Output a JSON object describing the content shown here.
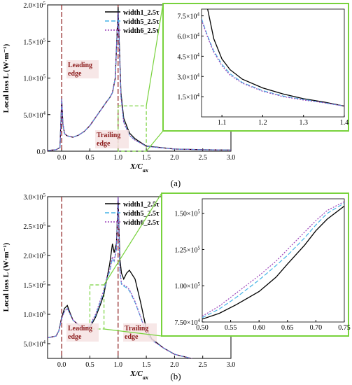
{
  "colors": {
    "width1": "#000000",
    "width5": "#46b4e6",
    "width6": "#9a3fb8",
    "zoom": "#78d23c",
    "marker": "#8b1a1a",
    "label_bg": "#f6e3e3"
  },
  "chart_data": [
    {
      "id": "a",
      "type": "line",
      "subfigure_label": "(a)",
      "xlabel": "X/C",
      "xlabel_sub": "ax",
      "ylabel": "Local loss L (W·m⁻¹)",
      "xlim": [
        -0.25,
        3.0
      ],
      "ylim": [
        0,
        200000
      ],
      "x_ticks": [
        "0.0",
        "0.5",
        "1.0",
        "1.5",
        "2.0",
        "2.5",
        "3.0"
      ],
      "y_ticks": [
        {
          "mantissa": "0.0",
          "exp": ""
        },
        {
          "mantissa": "5.0×10",
          "exp": "4"
        },
        {
          "mantissa": "1.0×10",
          "exp": "5"
        },
        {
          "mantissa": "1.5×10",
          "exp": "5"
        },
        {
          "mantissa": "2.0×10",
          "exp": "5"
        }
      ],
      "legend": [
        "width1_2.5τ",
        "width5_2.5τ",
        "width6_2.5τ"
      ],
      "annotations": {
        "leading": [
          "Leading",
          "edge"
        ],
        "trailing": [
          "Trailing",
          "edge"
        ]
      },
      "series": [
        {
          "name": "width1_2.5τ",
          "x": [
            -0.25,
            -0.1,
            -0.03,
            0.0,
            0.02,
            0.05,
            0.1,
            0.2,
            0.3,
            0.4,
            0.5,
            0.6,
            0.7,
            0.8,
            0.85,
            0.9,
            0.95,
            0.97,
            1.0,
            1.02,
            1.05,
            1.1,
            1.2,
            1.3,
            1.4,
            1.5,
            2.0,
            2.5,
            3.0
          ],
          "y": [
            1000,
            2000,
            5000,
            72000,
            38000,
            24000,
            21000,
            19000,
            22000,
            27000,
            35000,
            46000,
            57000,
            68000,
            73000,
            80000,
            100000,
            140000,
            197000,
            150000,
            80000,
            45000,
            25000,
            17000,
            12000,
            7000,
            3000,
            2000,
            1500
          ]
        },
        {
          "name": "width5_2.5τ",
          "x": [
            -0.25,
            -0.1,
            -0.03,
            0.0,
            0.02,
            0.05,
            0.1,
            0.2,
            0.3,
            0.4,
            0.5,
            0.6,
            0.7,
            0.8,
            0.85,
            0.9,
            0.95,
            0.97,
            1.0,
            1.02,
            1.05,
            1.1,
            1.2,
            1.3,
            1.4,
            1.5,
            2.0,
            2.5,
            3.0
          ],
          "y": [
            1000,
            2000,
            5000,
            72000,
            38000,
            24000,
            21000,
            19000,
            22000,
            27000,
            35000,
            46000,
            57000,
            68000,
            73000,
            80000,
            100000,
            138000,
            192000,
            145000,
            75000,
            40000,
            22000,
            15000,
            11000,
            6500,
            3000,
            2000,
            1500
          ]
        },
        {
          "name": "width6_2.5τ",
          "x": [
            -0.25,
            -0.1,
            -0.03,
            0.0,
            0.02,
            0.05,
            0.1,
            0.2,
            0.3,
            0.4,
            0.5,
            0.6,
            0.7,
            0.8,
            0.85,
            0.9,
            0.95,
            0.97,
            1.0,
            1.02,
            1.05,
            1.1,
            1.2,
            1.3,
            1.4,
            1.5,
            2.0,
            2.5,
            3.0
          ],
          "y": [
            1000,
            2000,
            5000,
            72000,
            38000,
            24000,
            21000,
            19000,
            22000,
            27000,
            35000,
            46000,
            57000,
            68000,
            73000,
            80000,
            100000,
            138000,
            191000,
            144000,
            74000,
            39000,
            21500,
            15000,
            11000,
            6500,
            3000,
            2000,
            1500
          ]
        }
      ],
      "zoom_box": {
        "xlim": [
          1.0,
          1.5
        ],
        "ylim": [
          0,
          62000
        ]
      },
      "inset": {
        "xlim": [
          1.05,
          1.4
        ],
        "ylim": [
          0,
          80000
        ],
        "x_ticks": [
          "1.1",
          "1.2",
          "1.3",
          "1.4"
        ],
        "y_ticks": [
          {
            "mantissa": "1.5×10",
            "exp": "4"
          },
          {
            "mantissa": "3.0×10",
            "exp": "4"
          },
          {
            "mantissa": "4.5×10",
            "exp": "4"
          },
          {
            "mantissa": "6.0×10",
            "exp": "4"
          },
          {
            "mantissa": "7.5×10",
            "exp": "4"
          }
        ],
        "series": [
          {
            "name": "width1_2.5τ",
            "x": [
              1.065,
              1.08,
              1.1,
              1.12,
              1.15,
              1.2,
              1.25,
              1.3,
              1.35,
              1.4
            ],
            "y": [
              80000,
              58000,
              43000,
              35000,
              28000,
              21500,
              17000,
              13500,
              11000,
              8000
            ]
          },
          {
            "name": "width5_2.5τ",
            "x": [
              1.05,
              1.065,
              1.08,
              1.1,
              1.12,
              1.15,
              1.2,
              1.25,
              1.3,
              1.35,
              1.4
            ],
            "y": [
              73000,
              60000,
              49000,
              39000,
              32000,
              25500,
              19500,
              15500,
              13000,
              10500,
              8000
            ]
          },
          {
            "name": "width6_2.5τ",
            "x": [
              1.05,
              1.065,
              1.08,
              1.1,
              1.12,
              1.15,
              1.2,
              1.25,
              1.3,
              1.35,
              1.4
            ],
            "y": [
              72000,
              59000,
              48000,
              38000,
              31000,
              25000,
              19000,
              15000,
              12500,
              10500,
              8000
            ]
          }
        ]
      }
    },
    {
      "id": "b",
      "type": "line",
      "subfigure_label": "(b)",
      "xlabel": "X/C",
      "xlabel_sub": "ax",
      "ylabel": "Local loss L (W·m⁻¹)",
      "xlim": [
        -0.25,
        3.0
      ],
      "ylim": [
        25000,
        300000
      ],
      "x_ticks": [
        "0.0",
        "0.5",
        "1.0",
        "1.5",
        "2.0",
        "2.5",
        "3.0"
      ],
      "y_ticks": [
        {
          "mantissa": "5.0×10",
          "exp": "4"
        },
        {
          "mantissa": "1.0×10",
          "exp": "5"
        },
        {
          "mantissa": "1.5×10",
          "exp": "5"
        },
        {
          "mantissa": "2.0×10",
          "exp": "5"
        },
        {
          "mantissa": "2.5×10",
          "exp": "5"
        },
        {
          "mantissa": "3.0×10",
          "exp": "5"
        }
      ],
      "legend": [
        "width1_2.5τ",
        "width5_2.5τ",
        "width6_2.5τ"
      ],
      "annotations": {
        "leading": [
          "Leading",
          "edge"
        ],
        "trailing": [
          "Trailing",
          "edge"
        ]
      },
      "series": [
        {
          "name": "width1_2.5τ",
          "x": [
            -0.25,
            -0.1,
            -0.05,
            0.0,
            0.05,
            0.1,
            0.15,
            0.2,
            0.3,
            0.4,
            0.5,
            0.6,
            0.7,
            0.75,
            0.8,
            0.85,
            0.9,
            0.93,
            0.97,
            1.0,
            1.03,
            1.06,
            1.1,
            1.15,
            1.2,
            1.3,
            1.4,
            1.5,
            1.6,
            1.8,
            2.0,
            2.5,
            3.0
          ],
          "y": [
            60000,
            63000,
            72000,
            95000,
            110000,
            115000,
            102000,
            90000,
            82000,
            76000,
            78000,
            95000,
            120000,
            135000,
            160000,
            185000,
            220000,
            205000,
            220000,
            300000,
            195000,
            170000,
            160000,
            170000,
            175000,
            160000,
            120000,
            75000,
            58000,
            43000,
            32000,
            20000,
            14000
          ]
        },
        {
          "name": "width5_2.5τ",
          "x": [
            -0.25,
            -0.1,
            -0.05,
            0.0,
            0.05,
            0.1,
            0.15,
            0.2,
            0.3,
            0.4,
            0.5,
            0.6,
            0.7,
            0.75,
            0.8,
            0.85,
            0.9,
            0.93,
            0.97,
            1.0,
            1.03,
            1.06,
            1.1,
            1.15,
            1.2,
            1.3,
            1.4,
            1.5,
            1.6,
            1.8,
            2.0,
            2.5,
            3.0
          ],
          "y": [
            60000,
            63000,
            72000,
            93000,
            105000,
            110000,
            100000,
            90000,
            82000,
            76000,
            80000,
            98000,
            125000,
            140000,
            160000,
            172000,
            195000,
            190000,
            210000,
            300000,
            175000,
            150000,
            148000,
            145000,
            140000,
            120000,
            95000,
            68000,
            56000,
            43000,
            32000,
            20000,
            14000
          ]
        },
        {
          "name": "width6_2.5τ",
          "x": [
            -0.25,
            -0.1,
            -0.05,
            0.0,
            0.05,
            0.1,
            0.15,
            0.2,
            0.3,
            0.4,
            0.5,
            0.6,
            0.7,
            0.75,
            0.8,
            0.85,
            0.9,
            0.93,
            0.97,
            1.0,
            1.03,
            1.06,
            1.1,
            1.15,
            1.2,
            1.3,
            1.4,
            1.5,
            1.6,
            1.8,
            2.0,
            2.5,
            3.0
          ],
          "y": [
            60000,
            63000,
            72000,
            93000,
            105000,
            110000,
            100000,
            90000,
            82000,
            76000,
            81000,
            100000,
            128000,
            142000,
            163000,
            175000,
            198000,
            192000,
            212000,
            300000,
            178000,
            152000,
            150000,
            147000,
            142000,
            122000,
            96000,
            69000,
            56000,
            43000,
            32000,
            20000,
            14000
          ]
        }
      ],
      "zoom_box": {
        "xlim": [
          0.5,
          0.75
        ],
        "ylim": [
          75000,
          150000
        ]
      },
      "inset": {
        "xlim": [
          0.5,
          0.75
        ],
        "ylim": [
          75000,
          160000
        ],
        "x_ticks": [
          "0.50",
          "0.55",
          "0.60",
          "0.65",
          "0.70",
          "0.75"
        ],
        "y_ticks": [
          {
            "mantissa": "7.50×10",
            "exp": "4"
          },
          {
            "mantissa": "1.00×10",
            "exp": "5"
          },
          {
            "mantissa": "1.25×10",
            "exp": "5"
          },
          {
            "mantissa": "1.50×10",
            "exp": "5"
          }
        ],
        "series": [
          {
            "name": "width1_2.5τ",
            "x": [
              0.5,
              0.53,
              0.56,
              0.6,
              0.63,
              0.65,
              0.68,
              0.7,
              0.72,
              0.75
            ],
            "y": [
              77000,
              81000,
              87000,
              96000,
              106000,
              115000,
              128000,
              138000,
              146000,
              155000
            ]
          },
          {
            "name": "width5_2.5τ",
            "x": [
              0.5,
              0.53,
              0.56,
              0.6,
              0.63,
              0.65,
              0.68,
              0.7,
              0.72,
              0.75
            ],
            "y": [
              78000,
              84000,
              92000,
              104000,
              114000,
              121000,
              133000,
              142000,
              150000,
              157000
            ]
          },
          {
            "name": "width6_2.5τ",
            "x": [
              0.5,
              0.53,
              0.56,
              0.6,
              0.63,
              0.65,
              0.68,
              0.7,
              0.72,
              0.75
            ],
            "y": [
              79000,
              86000,
              95000,
              107000,
              117000,
              125000,
              137000,
              145000,
              152000,
              158000
            ]
          }
        ]
      }
    }
  ]
}
